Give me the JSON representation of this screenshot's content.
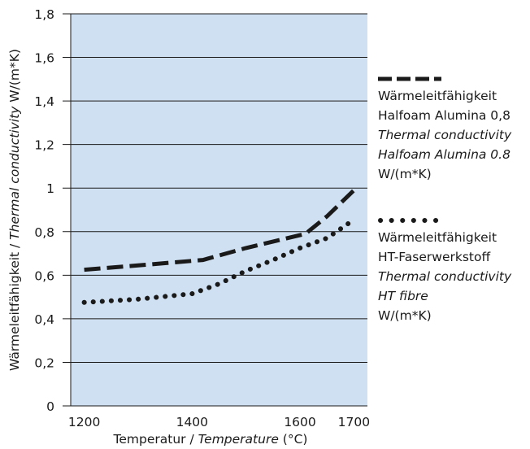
{
  "chart_data": {
    "type": "line",
    "xlabel": {
      "plain": "Temperatur / ",
      "italic": "Temperature",
      "unit": " (°C)"
    },
    "ylabel": {
      "plain1": "Wärmeleitfähigkeit / ",
      "italic": "Thermal conductivity",
      "plain2": " W/(m*K)"
    },
    "xlim": [
      1175,
      1725
    ],
    "ylim": [
      0,
      1.8
    ],
    "x_ticks": [
      1200,
      1400,
      1600,
      1700
    ],
    "x_tick_labels": [
      "1200",
      "1400",
      "1600",
      "1700"
    ],
    "y_ticks": [
      0,
      0.2,
      0.4,
      0.6,
      0.8,
      1.0,
      1.2,
      1.4,
      1.6,
      1.8
    ],
    "y_tick_labels": [
      "0",
      "0,2",
      "0,4",
      "0,6",
      "0,8",
      "1",
      "1,2",
      "1,4",
      "1,6",
      "1,8"
    ],
    "grid": "horizontal",
    "plot_background": "#cfe0f2",
    "legend_position": "right",
    "series": [
      {
        "style": "dashed",
        "color": "#1a1a1a",
        "x": [
          1200,
          1300,
          1420,
          1500,
          1610,
          1650,
          1700
        ],
        "y": [
          0.625,
          0.645,
          0.67,
          0.725,
          0.79,
          0.87,
          0.99
        ]
      },
      {
        "style": "dotted",
        "color": "#1a1a1a",
        "x": [
          1200,
          1300,
          1400,
          1450,
          1500,
          1550,
          1600,
          1650,
          1700
        ],
        "y": [
          0.475,
          0.49,
          0.515,
          0.56,
          0.62,
          0.67,
          0.725,
          0.77,
          0.855
        ]
      }
    ]
  },
  "legend": {
    "series1": {
      "line1": "Wärmeleitfähigkeit",
      "line2": "Halfoam Alumina 0,8",
      "line3": "Thermal conductivity",
      "line4": "Halfoam Alumina 0.8",
      "line5": "W/(m*K)"
    },
    "series2": {
      "line1": "Wärmeleitfähigkeit",
      "line2": "HT-Faserwerkstoff",
      "line3": "Thermal conductivity",
      "line4": "HT fibre",
      "line5": "W/(m*K)"
    }
  }
}
